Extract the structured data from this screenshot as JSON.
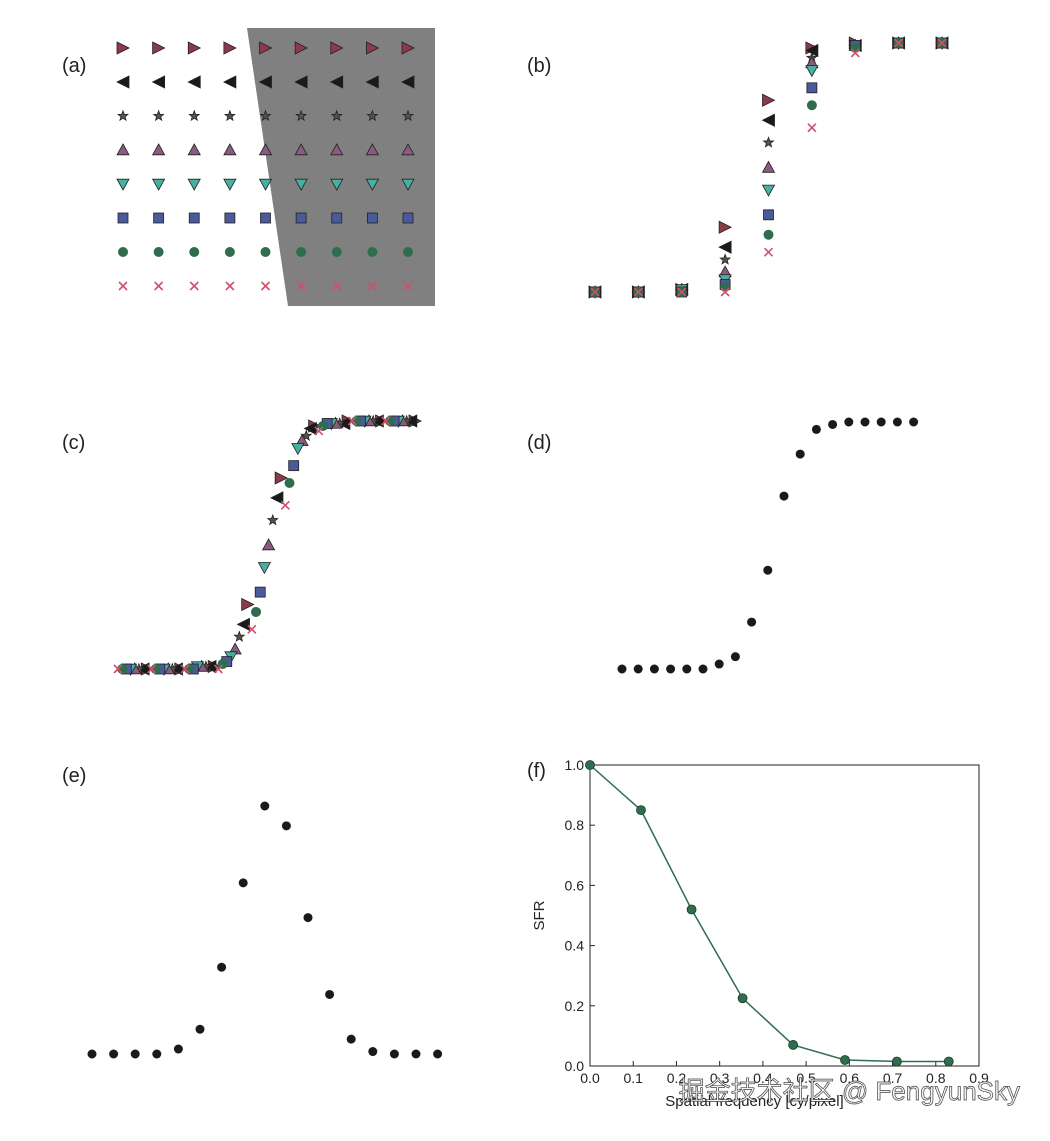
{
  "chart_data": [
    {
      "type": "marker-grid",
      "label": "(a)"
    },
    {
      "type": "scatter",
      "label": "(b)",
      "series": [
        {
          "marker": "right",
          "color": "#8b3a4a",
          "values": [
            0,
            0,
            0.01,
            0.26,
            0.77,
            0.98,
            1,
            1,
            1
          ]
        },
        {
          "marker": "left",
          "color": "#1a1a1a",
          "values": [
            0,
            0,
            0.01,
            0.18,
            0.69,
            0.97,
            0.99,
            1,
            1
          ]
        },
        {
          "marker": "star",
          "color": "#555544",
          "values": [
            0,
            0,
            0.01,
            0.13,
            0.6,
            0.94,
            0.99,
            1,
            1
          ]
        },
        {
          "marker": "up",
          "color": "#8a5a80",
          "values": [
            0,
            0,
            0.01,
            0.08,
            0.5,
            0.92,
            0.99,
            1,
            1
          ]
        },
        {
          "marker": "down",
          "color": "#48b0a0",
          "values": [
            0,
            0,
            0.01,
            0.05,
            0.41,
            0.89,
            0.99,
            1,
            1
          ]
        },
        {
          "marker": "square",
          "color": "#4a5a9a",
          "values": [
            0,
            0,
            0,
            0.03,
            0.31,
            0.82,
            0.99,
            1,
            1
          ]
        },
        {
          "marker": "circle",
          "color": "#2e6e4e",
          "values": [
            0,
            0,
            0,
            0.02,
            0.23,
            0.75,
            0.98,
            1,
            1
          ]
        },
        {
          "marker": "cross",
          "color": "#d0506a",
          "values": [
            0,
            0,
            0,
            0,
            0.16,
            0.66,
            0.96,
            1,
            1
          ]
        }
      ]
    },
    {
      "type": "esf",
      "label": "(c)"
    },
    {
      "type": "scatter",
      "label": "(d)",
      "color": "#1a1a1a",
      "values": [
        0,
        0,
        0,
        0,
        0,
        0,
        0.02,
        0.05,
        0.19,
        0.4,
        0.7,
        0.87,
        0.97,
        0.99,
        1,
        1,
        1,
        1,
        1
      ]
    },
    {
      "type": "scatter",
      "label": "(e)",
      "color": "#1a1a1a",
      "values": [
        0,
        0,
        0,
        0,
        0.02,
        0.1,
        0.35,
        0.69,
        1,
        0.92,
        0.55,
        0.24,
        0.06,
        0.01,
        0,
        0,
        0
      ]
    },
    {
      "type": "line",
      "label": "(f)",
      "color": "#2e6e4e",
      "x": [
        0,
        0.118,
        0.235,
        0.353,
        0.47,
        0.59,
        0.71,
        0.83
      ],
      "values": [
        1.0,
        0.85,
        0.52,
        0.225,
        0.07,
        0.02,
        0.015,
        0.015
      ],
      "xlim": [
        0,
        0.9
      ],
      "ylim": [
        0,
        1
      ],
      "xticks": [
        {
          "value": 0,
          "label": "0.0"
        },
        0.1,
        0.2,
        0.3,
        0.4,
        0.5,
        0.6,
        0.7,
        0.8,
        0.9
      ],
      "yticks": [
        {
          "value": 0,
          "label": "0.0"
        },
        0.2,
        0.4,
        0.6,
        0.8,
        {
          "value": 1,
          "label": "1.0"
        }
      ],
      "xlabel": "Spatial frequency [cy/pixel]",
      "ylabel": "SFR"
    }
  ],
  "watermark": "掘金技术社区 @ FengyunSky"
}
